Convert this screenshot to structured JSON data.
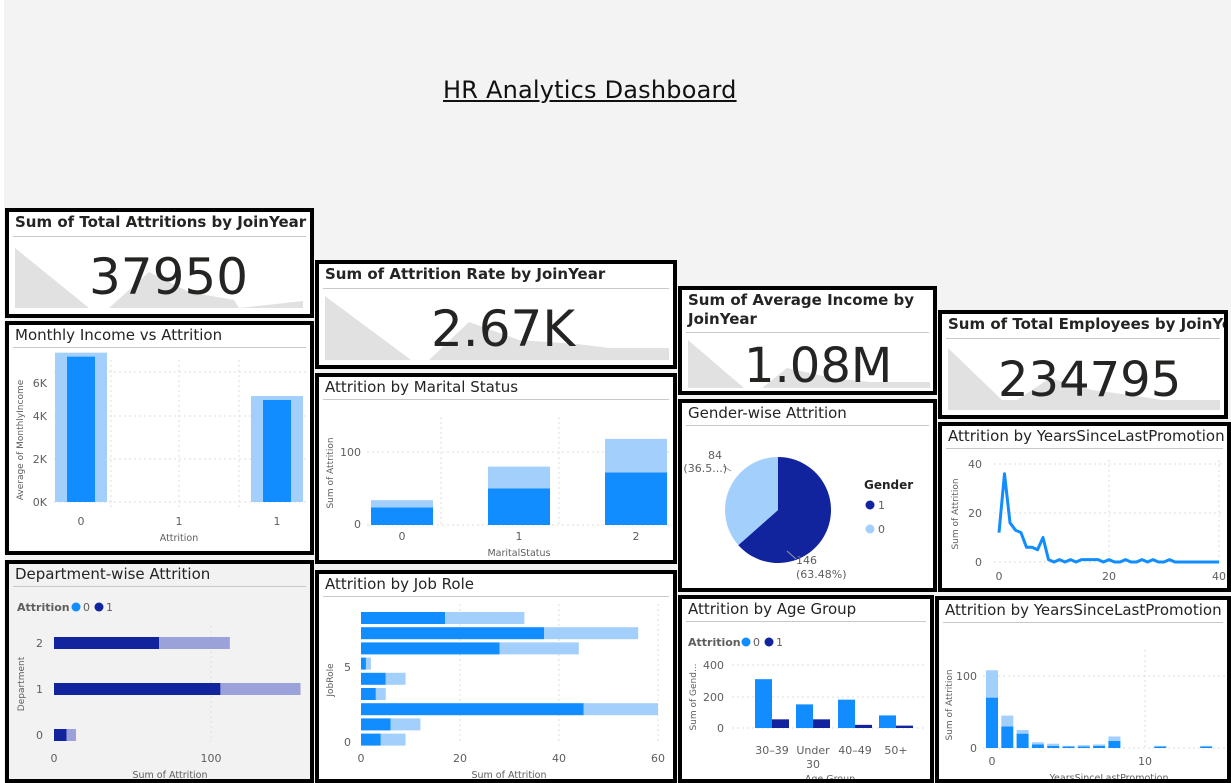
{
  "dashboard": {
    "title": "HR Analytics Dashboard"
  },
  "kpis": {
    "attritions": {
      "title": "Sum of Total Attritions by JoinYear",
      "value": "37950"
    },
    "rate": {
      "title": "Sum of Attrition Rate by JoinYear",
      "value": "2.67K"
    },
    "income": {
      "title_line1": "Sum of Average Income by",
      "title_line2": "JoinYear",
      "value": "1.08M"
    },
    "employees": {
      "title": "Sum of Total Employees by JoinYear",
      "value": "234795"
    }
  },
  "colors": {
    "dark": "#12239e",
    "mid": "#118dff",
    "light": "#a3cffc",
    "mid_light": "#9aa2d9",
    "spark": "#e1e1e1"
  },
  "chart_data": [
    {
      "id": "monthly_income",
      "type": "bar",
      "title": "Monthly Income vs Attrition",
      "xlabel": "Attrition",
      "ylabel": "Average of MonthlyIncome",
      "categories": [
        "0",
        "1",
        "1"
      ],
      "series": [
        {
          "values": [
            6800,
            0,
            4800
          ]
        }
      ],
      "ylim": [
        0,
        7000
      ],
      "yticks": [
        "0K",
        "2K",
        "4K",
        "6K"
      ]
    },
    {
      "id": "marital",
      "type": "bar",
      "title": "Attrition by Marital Status",
      "xlabel": "MaritalStatus",
      "ylabel": "Sum of Attrition",
      "categories": [
        "0",
        "1",
        "2"
      ],
      "series": [
        {
          "values": [
            24,
            50,
            72
          ]
        },
        {
          "values": [
            10,
            30,
            46
          ]
        }
      ],
      "ylim": [
        0,
        125
      ],
      "yticks": [
        "0",
        "100"
      ]
    },
    {
      "id": "gender",
      "type": "pie",
      "title": "Gender-wise Attrition",
      "legend_title": "Gender",
      "legend": [
        "1",
        "0"
      ],
      "series": [
        {
          "values": [
            146,
            84
          ]
        }
      ],
      "labels": {
        "large_value": "146",
        "large_pct": "(63.48%)",
        "small_value": "84",
        "small_pct": "(36.5...)"
      }
    },
    {
      "id": "promo_line",
      "type": "line",
      "title": "Attrition by YearsSinceLastPromotion",
      "ylabel": "Sum of Attrition",
      "x": [
        0,
        1,
        2,
        3,
        4,
        5,
        6,
        7,
        8,
        9,
        10,
        11,
        12,
        13,
        14,
        15,
        16,
        17,
        18,
        19,
        20,
        21,
        22,
        23,
        24,
        25,
        26,
        27,
        28,
        29,
        30,
        31,
        32,
        33,
        34,
        35,
        36,
        37,
        38,
        39,
        40
      ],
      "y": [
        12,
        36,
        16,
        13,
        12,
        6,
        6,
        5,
        10,
        1,
        0,
        1,
        0,
        1,
        0,
        1,
        1,
        1,
        1,
        0,
        1,
        0,
        0,
        1,
        0,
        0,
        1,
        0,
        1,
        0,
        0,
        1,
        0,
        0,
        0,
        0,
        0,
        0,
        0,
        0,
        0
      ],
      "xlim": [
        0,
        40
      ],
      "ylim": [
        0,
        42
      ],
      "xticks": [
        "0",
        "20",
        "40"
      ],
      "yticks": [
        "0",
        "20",
        "40"
      ]
    },
    {
      "id": "department",
      "type": "bar",
      "title": "Department-wise Attrition",
      "xlabel": "Sum of Attrition",
      "ylabel": "Department",
      "legend_title": "Attrition",
      "legend": [
        "0",
        "1"
      ],
      "categories": [
        "2",
        "1",
        "0"
      ],
      "series": [
        {
          "name": "1",
          "values": [
            67,
            106,
            8
          ]
        },
        {
          "name": "0",
          "values": [
            45,
            51,
            6
          ]
        }
      ],
      "xlim": [
        0,
        170
      ],
      "xticks": [
        "0",
        "100"
      ]
    },
    {
      "id": "job_role",
      "type": "bar",
      "title": "Attrition by Job Role",
      "xlabel": "Sum of Attrition",
      "ylabel": "JobRole",
      "series": [
        {
          "values": [
            17,
            37,
            28,
            1,
            5,
            3,
            45,
            6,
            4
          ]
        },
        {
          "values": [
            16,
            19,
            16,
            1,
            4,
            2,
            15,
            6,
            5
          ]
        }
      ],
      "xlim": [
        0,
        60
      ],
      "xticks": [
        "0",
        "20",
        "40",
        "60"
      ],
      "yticks": [
        "0",
        "5"
      ]
    },
    {
      "id": "age_group",
      "type": "bar",
      "title": "Attrition by Age Group",
      "xlabel": "Age Group",
      "ylabel": "Sum of Gend...",
      "legend_title": "Attrition",
      "legend": [
        "0",
        "1"
      ],
      "categories": [
        "30–39",
        "Under 30",
        "40–49",
        "50+"
      ],
      "series": [
        {
          "name": "0",
          "values": [
            310,
            150,
            180,
            80
          ]
        },
        {
          "name": "1",
          "values": [
            55,
            55,
            20,
            15
          ]
        }
      ],
      "ylim": [
        0,
        430
      ],
      "yticks": [
        "0",
        "200",
        "400"
      ]
    },
    {
      "id": "promo_bar",
      "type": "bar",
      "title": "Attrition by YearsSinceLastPromotion",
      "xlabel": "YearsSinceLastPromotion",
      "ylabel": "Sum of Attrition",
      "x": [
        0,
        1,
        2,
        3,
        4,
        5,
        6,
        7,
        8,
        9,
        10,
        11,
        12,
        13,
        14,
        15
      ],
      "series": [
        {
          "values": [
            70,
            30,
            20,
            5,
            3,
            2,
            2,
            3,
            10,
            0,
            0,
            2,
            0,
            0,
            2,
            0
          ]
        },
        {
          "values": [
            38,
            15,
            5,
            3,
            3,
            1,
            2,
            2,
            6,
            0,
            0,
            1,
            0,
            0,
            1,
            0
          ]
        }
      ],
      "ylim": [
        0,
        115
      ],
      "xticks": [
        "0",
        "10"
      ],
      "yticks": [
        "0",
        "100"
      ]
    }
  ]
}
